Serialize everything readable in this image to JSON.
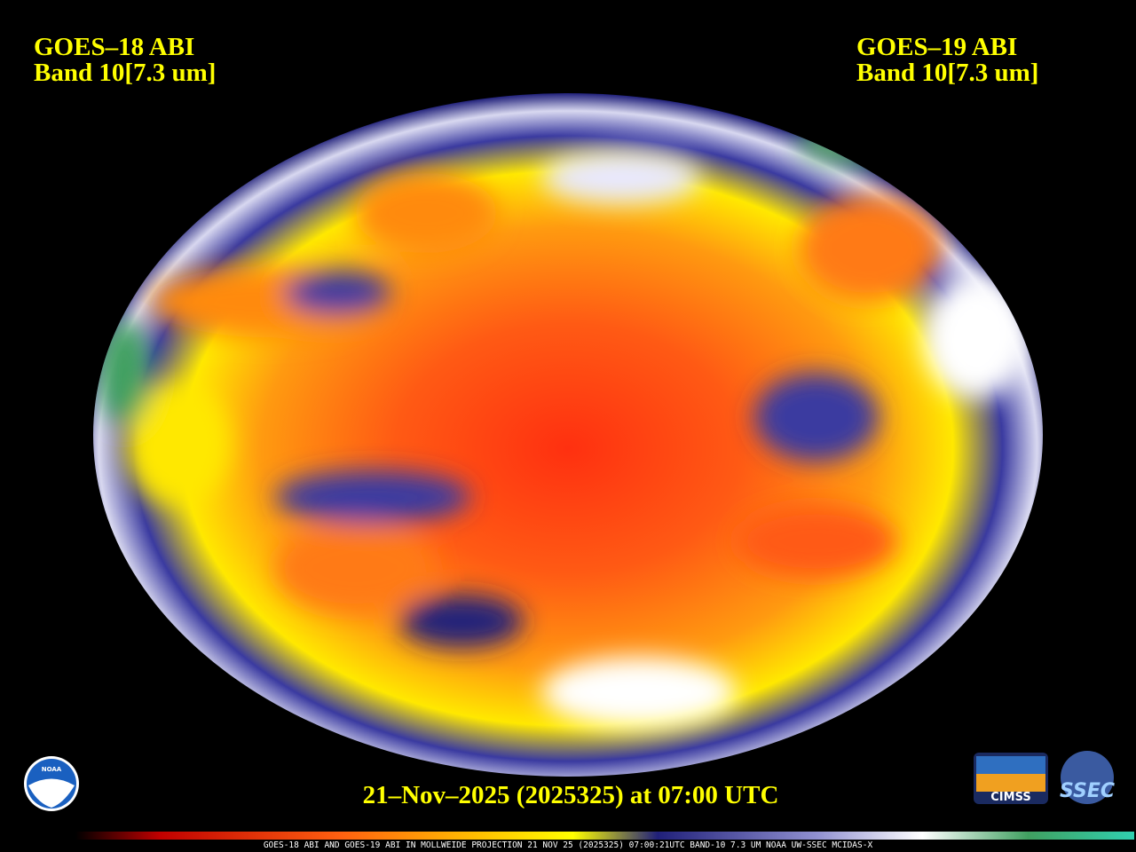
{
  "header": {
    "left": {
      "line1": "GOES–18 ABI",
      "line2": "Band 10[7.3 um]"
    },
    "right": {
      "line1": "GOES–19 ABI",
      "line2": "Band 10[7.3 um]"
    }
  },
  "timestamp": "21–Nov–2025 (2025325) at 07:00 UTC",
  "colorbar": {
    "caption": "GOES-18 ABI AND GOES-19 ABI IN MOLLWEIDE PROJECTION 21 NOV 25 (2025325) 07:00:21UTC BAND-10 7.3 UM NOAA UW-SSEC MCIDAS-X"
  },
  "logos": {
    "noaa": "NOAA",
    "cimss": "CIMSS",
    "ssec": "SSEC"
  }
}
